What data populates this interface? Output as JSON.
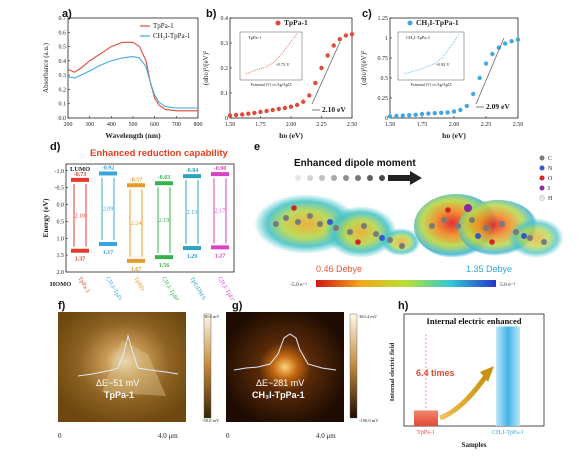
{
  "panels": {
    "a": {
      "label": "a)",
      "xlabel": "Wavelength (nm)",
      "ylabel": "Absorbance (a.u.)",
      "legend": [
        "TpPa-1",
        "CH₃I-TpPa-1"
      ]
    },
    "b": {
      "label": "b)",
      "xlabel": "hυ (eV)",
      "ylabel": "(αhυ)²/(eV)²",
      "legend": "TpPa-1",
      "bandgap": "2.10 eV",
      "inset_legend": "TpPa-1",
      "inset_note": "-0.73 V",
      "inset_xlabel": "Potential (V) vs.Ag/AgCl"
    },
    "c": {
      "label": "c)",
      "xlabel": "hυ (eV)",
      "ylabel": "(αhυ)²/(eV)²",
      "legend": "CH₃I-TpPa-1",
      "bandgap": "2.09 eV",
      "inset_legend": "CH₃I-TpPa-1",
      "inset_note": "-0.92 V",
      "inset_xlabel": "Potential (V) vs.Ag/AgCl"
    },
    "d": {
      "label": "d)",
      "title": "Enhanced reduction capability",
      "ylabel": "Energy (eV)",
      "lumo": "LUMO",
      "homo": "HOMO",
      "materials": [
        {
          "name": "TpPa-1",
          "lumo": "-0.73",
          "gap": "2.10",
          "homo": "1.37",
          "color": "#e53b2c"
        },
        {
          "name": "CH₃I-TpPa-1",
          "lumo": "-0.92",
          "gap": "2.09",
          "homo": "1.17",
          "color": "#3aa5d8"
        },
        {
          "name": "TpBD",
          "lumo": "-0.57",
          "gap": "2.24",
          "homo": "1.67",
          "color": "#e39b2a"
        },
        {
          "name": "CH₃I-TpBD",
          "lumo": "-0.63",
          "gap": "2.19",
          "homo": "1.56",
          "color": "#37b24a"
        },
        {
          "name": "TpEtDMA",
          "lumo": "-0.84",
          "gap": "2.13",
          "homo": "1.29",
          "color": "#2ba3c4"
        },
        {
          "name": "CH₃I-TpEtDMA",
          "lumo": "-0.90",
          "gap": "2.17",
          "homo": "1.27",
          "color": "#d941c8"
        }
      ],
      "yticks": [
        "-1.0",
        "-0.5",
        "0.0",
        "0.5",
        "1.0",
        "1.5",
        "2.0"
      ]
    },
    "e": {
      "label": "e",
      "title": "Enhanced dipole moment",
      "left_value": "0.46 Debye",
      "right_value": "1.35 Debye",
      "scale_min": "-5.0 e⁻²",
      "scale_max": "5.0 e⁻²",
      "elements": [
        "C",
        "N",
        "O",
        "I",
        "H"
      ]
    },
    "f": {
      "label": "f)",
      "annotation": "ΔE~51 mV",
      "sample": "TpPa-1",
      "scale_top": "50.0 mV",
      "scale_bottom": "-50.0 mV",
      "axis_start": "0",
      "axis_end": "4.0 μm"
    },
    "g": {
      "label": "g)",
      "annotation": "ΔE~281 mV",
      "sample": "CH₃I-TpPa-1",
      "scale_top": "363.4 mV",
      "scale_bottom": "-196.0 mV",
      "axis_start": "0",
      "axis_end": "4.0 μm"
    },
    "h": {
      "label": "h)",
      "title": "Internal electric enhanced",
      "ylabel": "Internal electric field",
      "xlabel": "Samples",
      "ratio": "6.4 times",
      "categories": [
        "TpPa-1",
        "CH₃I-TpPa-1"
      ],
      "values": [
        1,
        6.4
      ]
    }
  },
  "chart_data": [
    {
      "type": "line",
      "title": "",
      "xlabel": "Wavelength (nm)",
      "ylabel": "Absorbance (a.u.)",
      "xlim": [
        200,
        800
      ],
      "ylim": [
        0,
        0.7
      ],
      "x": [
        200,
        230,
        260,
        300,
        350,
        400,
        450,
        500,
        530,
        560,
        580,
        600,
        620,
        650,
        700,
        750,
        800
      ],
      "series": [
        {
          "name": "TpPa-1",
          "color": "#e04a3a",
          "values": [
            0.34,
            0.32,
            0.35,
            0.4,
            0.45,
            0.5,
            0.53,
            0.53,
            0.5,
            0.4,
            0.25,
            0.14,
            0.09,
            0.06,
            0.05,
            0.05,
            0.05
          ]
        },
        {
          "name": "CH₃I-TpPa-1",
          "color": "#41a9de",
          "values": [
            0.29,
            0.28,
            0.3,
            0.33,
            0.37,
            0.4,
            0.42,
            0.43,
            0.42,
            0.36,
            0.25,
            0.16,
            0.11,
            0.08,
            0.07,
            0.07,
            0.07
          ]
        }
      ]
    },
    {
      "type": "scatter",
      "title": "",
      "xlabel": "hυ (eV)",
      "ylabel": "(αhυ)²/(eV)²",
      "xlim": [
        1.5,
        2.5
      ],
      "ylim": [
        0,
        0.4
      ],
      "series": [
        {
          "name": "TpPa-1",
          "color": "#e04a3a",
          "x": [
            1.5,
            1.55,
            1.6,
            1.65,
            1.7,
            1.75,
            1.8,
            1.85,
            1.9,
            1.95,
            2.0,
            2.05,
            2.1,
            2.15,
            2.2,
            2.25,
            2.3,
            2.35,
            2.4,
            2.45,
            2.5
          ],
          "y": [
            0.01,
            0.012,
            0.014,
            0.017,
            0.02,
            0.024,
            0.028,
            0.032,
            0.036,
            0.04,
            0.045,
            0.052,
            0.065,
            0.09,
            0.14,
            0.2,
            0.25,
            0.29,
            0.315,
            0.33,
            0.335
          ]
        }
      ]
    },
    {
      "type": "scatter",
      "title": "",
      "xlabel": "hυ (eV)",
      "ylabel": "(αhυ)²/(eV)²",
      "xlim": [
        1.5,
        2.5
      ],
      "ylim": [
        0,
        1.25
      ],
      "series": [
        {
          "name": "CH₃I-TpPa-1",
          "color": "#41a9de",
          "x": [
            1.5,
            1.55,
            1.6,
            1.65,
            1.7,
            1.75,
            1.8,
            1.85,
            1.9,
            1.95,
            2.0,
            2.05,
            2.1,
            2.15,
            2.2,
            2.25,
            2.3,
            2.35,
            2.4,
            2.45,
            2.5
          ],
          "y": [
            0.02,
            0.025,
            0.03,
            0.035,
            0.04,
            0.05,
            0.055,
            0.06,
            0.065,
            0.07,
            0.08,
            0.1,
            0.15,
            0.3,
            0.5,
            0.68,
            0.8,
            0.88,
            0.93,
            0.96,
            0.98
          ]
        }
      ]
    },
    {
      "type": "bar",
      "title": "Internal electric enhanced",
      "xlabel": "Samples",
      "ylabel": "Internal electric field",
      "categories": [
        "TpPa-1",
        "CH₃I-TpPa-1"
      ],
      "values": [
        1,
        6.4
      ]
    }
  ]
}
